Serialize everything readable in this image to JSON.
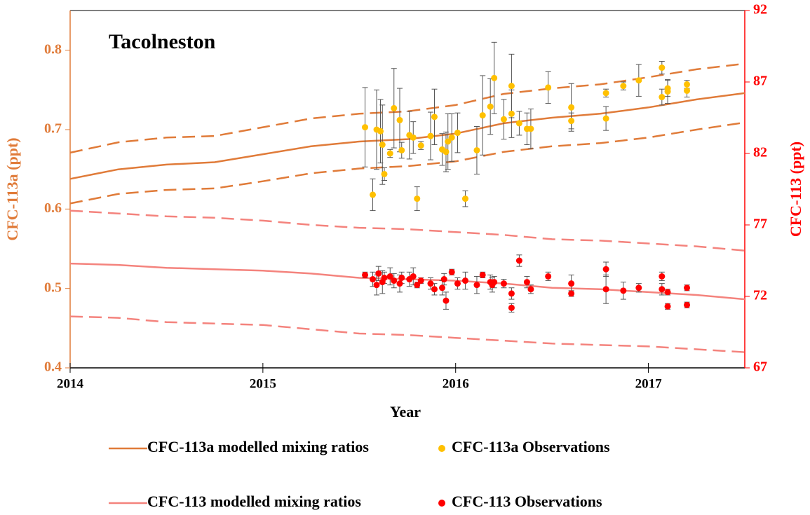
{
  "chart_data": {
    "type": "line",
    "title": "Tacolneston",
    "x_label": "Year",
    "y_label": "CFC-113a (ppt)",
    "y2_label": "CFC-113 (ppt)",
    "xlim": [
      2014,
      2017.5
    ],
    "xticks": [
      2014,
      2015,
      2016,
      2017
    ],
    "ylim": [
      0.4,
      0.85
    ],
    "yticks": [
      0.4,
      0.5,
      0.6,
      0.7,
      0.8
    ],
    "y2lim": [
      67,
      92
    ],
    "y2ticks": [
      67,
      72,
      77,
      82,
      87,
      92
    ],
    "y_axis_color": "#e07b39",
    "y2_axis_color": "#ff0000",
    "x": [
      2014,
      2014.25,
      2014.5,
      2014.75,
      2015,
      2015.25,
      2015.5,
      2015.75,
      2016,
      2016.25,
      2016.5,
      2016.75,
      2017,
      2017.25,
      2017.5
    ],
    "series": [
      {
        "name": "CFC-113a modelled mixing ratios",
        "type": "line",
        "color": "#e07b39",
        "values": [
          0.638,
          0.65,
          0.656,
          0.659,
          0.669,
          0.679,
          0.685,
          0.688,
          0.695,
          0.708,
          0.715,
          0.72,
          0.728,
          0.738,
          0.746
        ],
        "upper": [
          0.671,
          0.684,
          0.69,
          0.692,
          0.703,
          0.714,
          0.72,
          0.723,
          0.731,
          0.745,
          0.752,
          0.757,
          0.766,
          0.776,
          0.783
        ],
        "lower": [
          0.607,
          0.619,
          0.624,
          0.626,
          0.635,
          0.645,
          0.651,
          0.654,
          0.66,
          0.672,
          0.679,
          0.683,
          0.69,
          0.7,
          0.709
        ]
      },
      {
        "name": "CFC-113a Observations",
        "type": "scatter",
        "color": "#ffc000",
        "x": [
          2015.53,
          2015.57,
          2015.59,
          2015.61,
          2015.62,
          2015.63,
          2015.66,
          2015.68,
          2015.71,
          2015.72,
          2015.76,
          2015.78,
          2015.8,
          2015.82,
          2015.87,
          2015.89,
          2015.93,
          2015.95,
          2015.96,
          2015.98,
          2016.01,
          2016.05,
          2016.11,
          2016.14,
          2016.18,
          2016.2,
          2016.25,
          2016.29,
          2016.29,
          2016.33,
          2016.37,
          2016.39,
          2016.48,
          2016.6,
          2016.6,
          2016.78,
          2016.78,
          2016.87,
          2016.95,
          2017.07,
          2017.07,
          2017.1,
          2017.1,
          2017.2,
          2017.2
        ],
        "values": [
          0.703,
          0.618,
          0.7,
          0.698,
          0.681,
          0.644,
          0.67,
          0.727,
          0.712,
          0.674,
          0.693,
          0.69,
          0.613,
          0.68,
          0.692,
          0.716,
          0.675,
          0.672,
          0.685,
          0.69,
          0.696,
          0.613,
          0.674,
          0.718,
          0.729,
          0.765,
          0.713,
          0.72,
          0.755,
          0.708,
          0.701,
          0.701,
          0.753,
          0.728,
          0.711,
          0.714,
          0.746,
          0.755,
          0.762,
          0.778,
          0.741,
          0.748,
          0.752,
          0.757,
          0.749
        ],
        "errors": [
          0.05,
          0.02,
          0.05,
          0.04,
          0.05,
          0.008,
          0.005,
          0.05,
          0.04,
          0.01,
          0.03,
          0.02,
          0.015,
          0.005,
          0.03,
          0.035,
          0.02,
          0.025,
          0.035,
          0.03,
          0.025,
          0.01,
          0.03,
          0.05,
          0.035,
          0.045,
          0.025,
          0.03,
          0.04,
          0.015,
          0.02,
          0.025,
          0.02,
          0.03,
          0.01,
          0.015,
          0.005,
          0.005,
          0.02,
          0.008,
          0.01,
          0.015,
          0.01,
          0.005,
          0.008
        ]
      },
      {
        "name": "CFC-113 modelled mixing ratios",
        "type": "line",
        "color": "#f4837d",
        "axis": "y2",
        "values": [
          74.3,
          74.2,
          74.0,
          73.9,
          73.8,
          73.6,
          73.3,
          73.2,
          73.1,
          72.9,
          72.6,
          72.5,
          72.3,
          72.1,
          71.8
        ],
        "upper": [
          78.0,
          77.8,
          77.6,
          77.5,
          77.3,
          77.0,
          76.8,
          76.7,
          76.5,
          76.3,
          76.0,
          75.9,
          75.7,
          75.5,
          75.2
        ],
        "lower": [
          70.6,
          70.5,
          70.2,
          70.1,
          70.0,
          69.7,
          69.4,
          69.3,
          69.1,
          68.9,
          68.7,
          68.6,
          68.5,
          68.3,
          68.1
        ]
      },
      {
        "name": "CFC-113 Observations",
        "type": "scatter",
        "color": "#ff0000",
        "axis": "y2",
        "x": [
          2015.53,
          2015.57,
          2015.59,
          2015.6,
          2015.62,
          2015.63,
          2015.66,
          2015.68,
          2015.71,
          2015.72,
          2015.76,
          2015.78,
          2015.8,
          2015.82,
          2015.87,
          2015.89,
          2015.93,
          2015.94,
          2015.95,
          2015.98,
          2016.01,
          2016.05,
          2016.11,
          2016.14,
          2016.18,
          2016.19,
          2016.2,
          2016.25,
          2016.29,
          2016.29,
          2016.33,
          2016.37,
          2016.39,
          2016.48,
          2016.6,
          2016.6,
          2016.78,
          2016.78,
          2016.87,
          2016.95,
          2017.07,
          2017.07,
          2017.1,
          2017.1,
          2017.2,
          2017.2
        ],
        "values": [
          73.5,
          73.2,
          72.8,
          73.6,
          73.0,
          73.3,
          73.4,
          73.1,
          72.9,
          73.3,
          73.2,
          73.4,
          72.8,
          73.1,
          72.9,
          72.5,
          72.6,
          73.2,
          71.7,
          73.7,
          72.9,
          73.1,
          72.8,
          73.5,
          73.0,
          72.8,
          73.0,
          72.9,
          72.2,
          71.2,
          74.5,
          73.0,
          72.5,
          73.4,
          72.9,
          72.2,
          73.9,
          72.5,
          72.4,
          72.6,
          73.4,
          72.5,
          72.3,
          71.3,
          72.6,
          71.4
        ],
        "errors": [
          0.2,
          0.5,
          0.7,
          0.5,
          0.8,
          0.4,
          0.6,
          0.5,
          0.6,
          0.4,
          0.5,
          0.6,
          0.2,
          0.2,
          0.4,
          0.4,
          0.5,
          0.4,
          0.6,
          0.2,
          0.4,
          0.6,
          0.6,
          0.2,
          0.5,
          0.5,
          0.4,
          0.3,
          0.4,
          0.3,
          0.4,
          0.4,
          0.3,
          0.3,
          0.6,
          0.2,
          0.5,
          1.0,
          0.6,
          0.3,
          0.3,
          0.4,
          0.2,
          0.2,
          0.2,
          0.2
        ]
      }
    ]
  }
}
